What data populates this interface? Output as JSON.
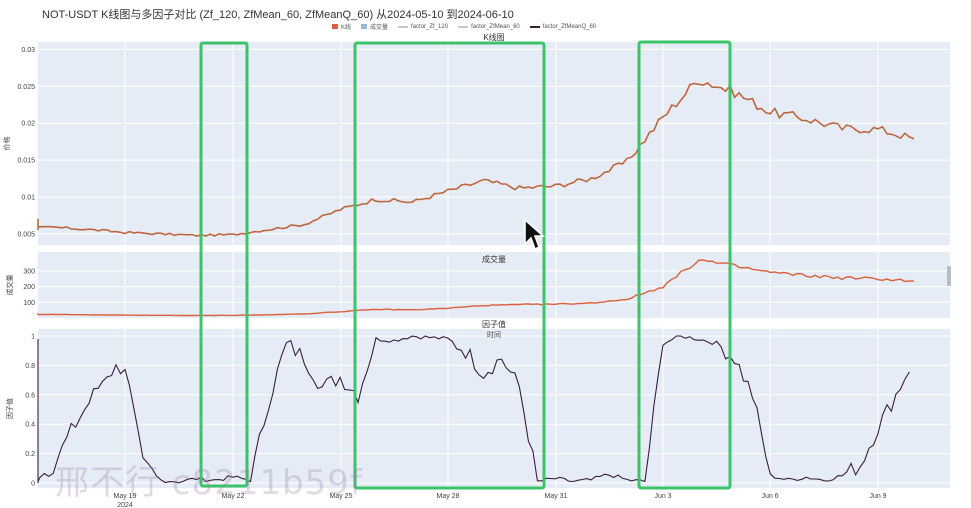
{
  "title": "NOT-USDT K线图与多因子对比 (Zf_120, ZfMean_60, ZfMeanQ_60) 从2024-05-10 到2024-06-10",
  "legend": [
    {
      "label": "K线",
      "color": "#d9603b"
    },
    {
      "label": "成交量",
      "color": "#9db7d6"
    },
    {
      "label": "factor_Zf_120",
      "color": "#c8c8c8"
    },
    {
      "label": "factor_ZfMean_60",
      "color": "#c8c8c8"
    },
    {
      "label": "factor_ZfMeanQ_60",
      "color": "#3b1f3a"
    }
  ],
  "watermark": "邢不行 c8211b59f",
  "colors": {
    "panel_bg": "#e6ecf6",
    "grid": "#ffffff",
    "highlight": "#3cc46b",
    "up": "#2f8f5b",
    "down": "#d9603b",
    "factor": "#3b1f3a"
  },
  "chart_data": [
    {
      "type": "line",
      "panel": "price",
      "title": "K线图",
      "ylabel": "价格",
      "ylim": [
        0.0035,
        0.031
      ],
      "yticks": [
        "0.005",
        "0.01",
        "0.015",
        "0.02",
        "0.025",
        "0.03"
      ],
      "x": [
        "2024-05-10",
        "2024-05-11",
        "2024-05-12",
        "2024-05-13",
        "2024-05-14",
        "2024-05-15",
        "2024-05-16",
        "2024-05-17",
        "2024-05-18",
        "2024-05-19",
        "2024-05-20",
        "2024-05-21",
        "2024-05-22",
        "2024-05-23",
        "2024-05-24",
        "2024-05-25",
        "2024-05-26",
        "2024-05-27",
        "2024-05-28",
        "2024-05-29",
        "2024-05-30",
        "2024-05-31",
        "2024-06-01",
        "2024-06-02",
        "2024-06-03",
        "2024-06-04",
        "2024-06-05",
        "2024-06-06",
        "2024-06-07",
        "2024-06-08",
        "2024-06-09",
        "2024-06-10"
      ],
      "values": [
        0.0068,
        0.007,
        0.0064,
        0.006,
        0.0057,
        0.0056,
        0.0057,
        0.0059,
        0.0056,
        0.0052,
        0.005,
        0.0048,
        0.0049,
        0.0056,
        0.0063,
        0.0083,
        0.0097,
        0.0093,
        0.0108,
        0.0122,
        0.0112,
        0.0115,
        0.0125,
        0.0148,
        0.0208,
        0.026,
        0.0242,
        0.0215,
        0.0206,
        0.0193,
        0.0192,
        0.0179
      ]
    },
    {
      "type": "line",
      "panel": "volume",
      "title": "成交量",
      "ylabel": "成交量",
      "ylim": [
        0,
        420
      ],
      "yticks": [
        "100",
        "200",
        "300"
      ],
      "x": [
        "2024-05-10",
        "2024-05-11",
        "2024-05-12",
        "2024-05-13",
        "2024-05-14",
        "2024-05-15",
        "2024-05-16",
        "2024-05-17",
        "2024-05-18",
        "2024-05-19",
        "2024-05-20",
        "2024-05-21",
        "2024-05-22",
        "2024-05-23",
        "2024-05-24",
        "2024-05-25",
        "2024-05-26",
        "2024-05-27",
        "2024-05-28",
        "2024-05-29",
        "2024-05-30",
        "2024-05-31",
        "2024-06-01",
        "2024-06-02",
        "2024-06-03",
        "2024-06-04",
        "2024-06-05",
        "2024-06-06",
        "2024-06-07",
        "2024-06-08",
        "2024-06-09",
        "2024-06-10"
      ],
      "values": [
        25,
        30,
        28,
        24,
        22,
        20,
        21,
        23,
        20,
        18,
        17,
        16,
        17,
        20,
        26,
        40,
        55,
        52,
        62,
        80,
        85,
        88,
        95,
        120,
        200,
        370,
        330,
        290,
        270,
        255,
        250,
        235
      ]
    },
    {
      "type": "line",
      "panel": "factor",
      "title": "因子值",
      "xlabel": "时间",
      "ylabel": "因子值",
      "ylim": [
        0,
        1
      ],
      "yticks": [
        "0",
        "0.2",
        "0.4",
        "0.6",
        "0.8",
        "1"
      ],
      "xticks": [
        "May 19\n2024",
        "May 22",
        "May 25",
        "May 28",
        "May 31",
        "Jun 3",
        "Jun 6",
        "Jun 9"
      ],
      "x": [
        0,
        0.5,
        1,
        1.5,
        2,
        2.5,
        3,
        3.5,
        4,
        4.5,
        5,
        5.5,
        6,
        6.5,
        7,
        7.5,
        8,
        8.5,
        9,
        9.5,
        10,
        10.5,
        11,
        11.5,
        12,
        12.5,
        13,
        13.5,
        14,
        14.5,
        15,
        15.5,
        16,
        16.5,
        17,
        17.5,
        18,
        18.5,
        19,
        19.5,
        20,
        20.5,
        21,
        21.5,
        22,
        22.5,
        23,
        23.5,
        24,
        24.5,
        25,
        25.5,
        26,
        26.5,
        27,
        27.5,
        28,
        28.5,
        29,
        29.5,
        30,
        30.5,
        31
      ],
      "values": [
        0.98,
        0.25,
        0.08,
        0.03,
        0.02,
        0.02,
        0.01,
        0.05,
        0.02,
        0.01,
        0.03,
        0.02,
        0.08,
        0.02,
        0.12,
        0.35,
        0.55,
        0.75,
        0.8,
        0.12,
        0.02,
        0.01,
        0.03,
        0.02,
        0.04,
        0.02,
        0.55,
        0.95,
        0.85,
        0.65,
        0.72,
        0.6,
        0.98,
        0.97,
        1.0,
        0.99,
        0.98,
        0.9,
        0.75,
        0.85,
        0.65,
        0.01,
        0.03,
        0.01,
        0.02,
        0.06,
        0.02,
        0.01,
        0.95,
        1.0,
        0.98,
        0.95,
        0.85,
        0.6,
        0.05,
        0.02,
        0.04,
        0.02,
        0.05,
        0.12,
        0.38,
        0.6,
        0.85
      ]
    }
  ]
}
